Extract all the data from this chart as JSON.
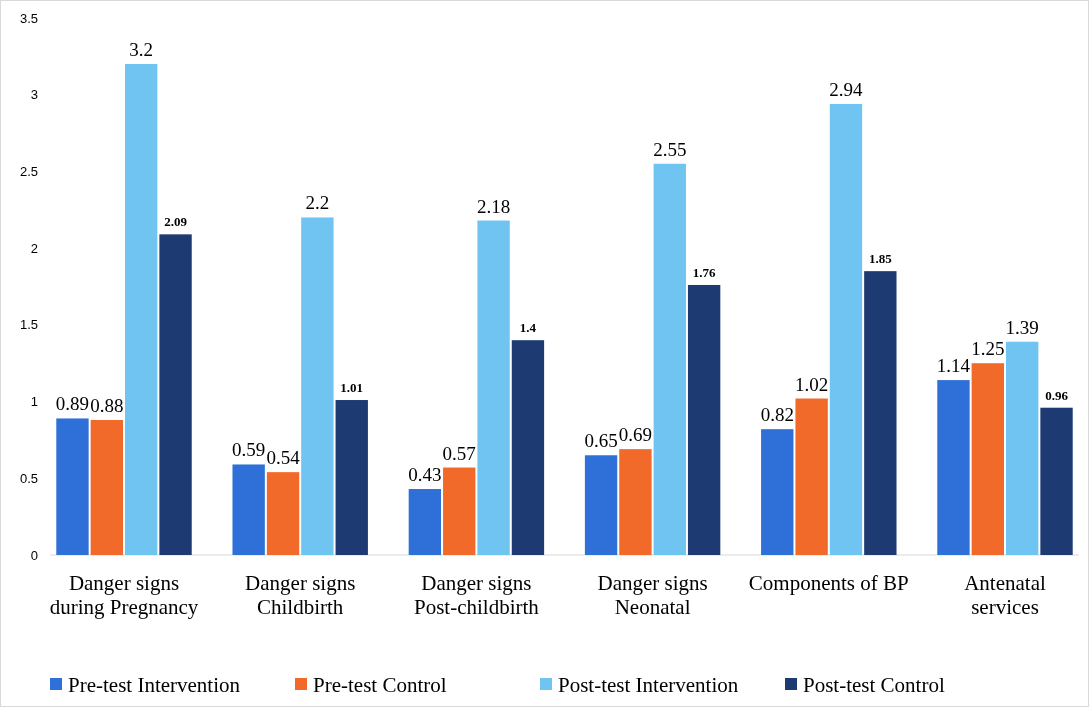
{
  "chart_data": {
    "type": "bar",
    "categories": [
      "Danger signs during Pregnancy",
      "Danger signs Childbirth",
      "Danger signs Post-childbirth",
      "Danger signs Neonatal",
      "Components of BP",
      "Antenatal services"
    ],
    "series": [
      {
        "name": "Pre-test Intervention",
        "color": "#2f6fd8",
        "values": [
          0.89,
          0.59,
          0.43,
          0.65,
          0.82,
          1.14
        ]
      },
      {
        "name": "Pre-test Control",
        "color": "#f26a2a",
        "values": [
          0.88,
          0.54,
          0.57,
          0.69,
          1.02,
          1.25
        ]
      },
      {
        "name": "Post-test Intervention",
        "color": "#70c4f2",
        "values": [
          3.2,
          2.2,
          2.18,
          2.55,
          2.94,
          1.39
        ]
      },
      {
        "name": "Post-test Control",
        "color": "#1d3a72",
        "values": [
          2.09,
          1.01,
          1.4,
          1.76,
          1.85,
          0.96
        ]
      }
    ],
    "ylim": [
      0,
      3.5
    ],
    "yticks": [
      0,
      0.5,
      1,
      1.5,
      2,
      2.5,
      3,
      3.5
    ],
    "data_labels": true,
    "legend": "bottom",
    "grid": false
  }
}
